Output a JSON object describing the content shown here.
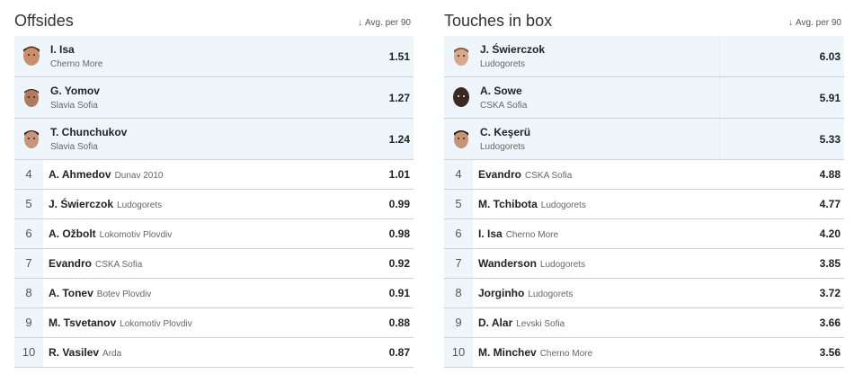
{
  "left": {
    "title": "Offsides",
    "sort_label": "Avg. per 90",
    "sort_arrow": "↓",
    "top": [
      {
        "name": "I. Isa",
        "team": "Cherno More",
        "value": "1.51"
      },
      {
        "name": "G. Yomov",
        "team": "Slavia Sofia",
        "value": "1.27"
      },
      {
        "name": "T. Chunchukov",
        "team": "Slavia Sofia",
        "value": "1.24"
      }
    ],
    "rest": [
      {
        "rank": "4",
        "name": "A. Ahmedov",
        "team": "Dunav 2010",
        "value": "1.01"
      },
      {
        "rank": "5",
        "name": "J. Świerczok",
        "team": "Ludogorets",
        "value": "0.99"
      },
      {
        "rank": "6",
        "name": "A. Ožbolt",
        "team": "Lokomotiv Plovdiv",
        "value": "0.98"
      },
      {
        "rank": "7",
        "name": "Evandro",
        "team": "CSKA Sofia",
        "value": "0.92"
      },
      {
        "rank": "8",
        "name": "A. Tonev",
        "team": "Botev Plovdiv",
        "value": "0.91"
      },
      {
        "rank": "9",
        "name": "M. Tsvetanov",
        "team": "Lokomotiv Plovdiv",
        "value": "0.88"
      },
      {
        "rank": "10",
        "name": "R. Vasilev",
        "team": "Arda",
        "value": "0.87"
      }
    ]
  },
  "right": {
    "title": "Touches in box",
    "sort_label": "Avg. per 90",
    "sort_arrow": "↓",
    "top": [
      {
        "name": "J. Świerczok",
        "team": "Ludogorets",
        "value": "6.03"
      },
      {
        "name": "A. Sowe",
        "team": "CSKA Sofia",
        "value": "5.91"
      },
      {
        "name": "C. Keşerü",
        "team": "Ludogorets",
        "value": "5.33"
      }
    ],
    "rest": [
      {
        "rank": "4",
        "name": "Evandro",
        "team": "CSKA Sofia",
        "value": "4.88"
      },
      {
        "rank": "5",
        "name": "M. Tchibota",
        "team": "Ludogorets",
        "value": "4.77"
      },
      {
        "rank": "6",
        "name": "I. Isa",
        "team": "Cherno More",
        "value": "4.20"
      },
      {
        "rank": "7",
        "name": "Wanderson",
        "team": "Ludogorets",
        "value": "3.85"
      },
      {
        "rank": "8",
        "name": "Jorginho",
        "team": "Ludogorets",
        "value": "3.72"
      },
      {
        "rank": "9",
        "name": "D. Alar",
        "team": "Levski Sofia",
        "value": "3.66"
      },
      {
        "rank": "10",
        "name": "M. Minchev",
        "team": "Cherno More",
        "value": "3.56"
      }
    ]
  },
  "icons": {
    "avatar": "player-avatar-icon",
    "sort": "arrow-down-icon"
  },
  "colors": {
    "highlight_bg": "#eef6fb",
    "row_border": "#d0d0d0",
    "text": "#222222",
    "muted": "#666666"
  }
}
